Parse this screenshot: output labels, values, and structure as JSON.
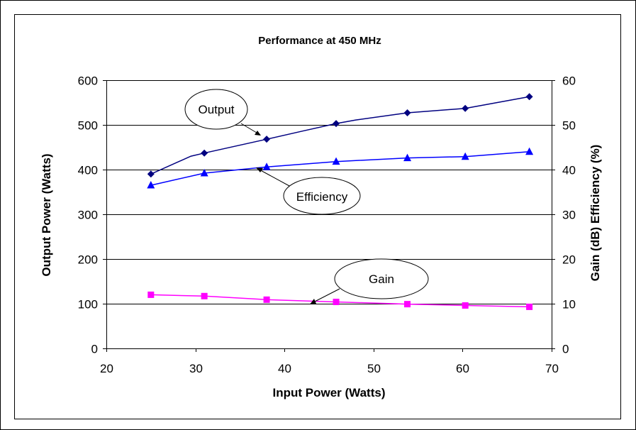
{
  "chart_data": {
    "type": "line",
    "title": "Performance at 450 MHz",
    "xlabel": "Input Power (Watts)",
    "ylabel_left": "Output Power (Watts)",
    "ylabel_right": "Gain (dB) Efficiency (%)",
    "xlim": [
      20,
      70
    ],
    "xticks": [
      "20",
      "30",
      "40",
      "50",
      "60",
      "70"
    ],
    "ylim_left": [
      0,
      600
    ],
    "yticks_left": [
      "0",
      "100",
      "200",
      "300",
      "400",
      "500",
      "600"
    ],
    "ylim_right": [
      0,
      60
    ],
    "yticks_right": [
      "0",
      "10",
      "20",
      "30",
      "40",
      "50",
      "60"
    ],
    "grid": "horizontal",
    "series": [
      {
        "name": "Output",
        "axis": "left",
        "color": "#000080",
        "marker": "diamond",
        "x": [
          25,
          31,
          38,
          45.8,
          53.8,
          60.3,
          67.5
        ],
        "y": [
          390,
          437,
          468,
          503,
          527,
          537,
          563
        ],
        "line_through": [
          [
            25,
            390
          ],
          [
            29.5,
            430
          ],
          [
            31,
            437
          ],
          [
            38,
            468
          ],
          [
            42,
            486
          ],
          [
            45.8,
            503
          ],
          [
            48,
            511
          ],
          [
            53.8,
            527
          ],
          [
            60.3,
            537
          ],
          [
            67.5,
            563
          ]
        ]
      },
      {
        "name": "Efficiency",
        "axis": "right",
        "color": "#0000ff",
        "marker": "triangle",
        "x": [
          25,
          31,
          38,
          45.8,
          53.8,
          60.3,
          67.5
        ],
        "y": [
          36.5,
          39.2,
          40.6,
          41.8,
          42.6,
          42.9,
          44
        ]
      },
      {
        "name": "Gain",
        "axis": "right",
        "color": "#ff00ff",
        "marker": "square",
        "x": [
          25,
          31,
          38,
          45.8,
          53.8,
          60.3,
          67.5
        ],
        "y": [
          12,
          11.7,
          10.9,
          10.4,
          9.9,
          9.6,
          9.3
        ]
      }
    ],
    "annotations": [
      {
        "label": "Output",
        "color": "#000000"
      },
      {
        "label": "Efficiency",
        "color": "#000000"
      },
      {
        "label": "Gain",
        "color": "#000000"
      }
    ]
  }
}
